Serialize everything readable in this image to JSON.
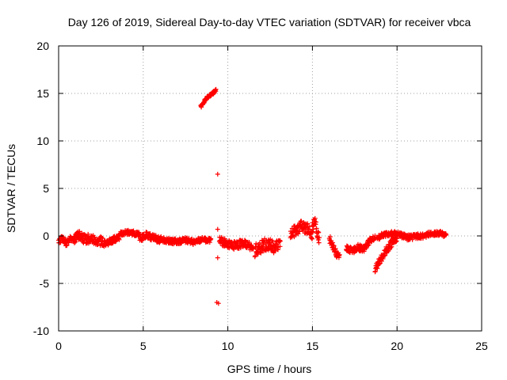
{
  "chart_data": {
    "type": "scatter",
    "title": "Day 126 of 2019, Sidereal Day-to-day VTEC variation (SDTVAR) for receiver vbca",
    "xlabel": "GPS time / hours",
    "ylabel": "SDTVAR / TECUs",
    "xlim": [
      0,
      25
    ],
    "ylim": [
      -10,
      20
    ],
    "xticks": [
      "0",
      "5",
      "10",
      "15",
      "20",
      "25"
    ],
    "yticks": [
      "-10",
      "-5",
      "0",
      "5",
      "10",
      "15",
      "20"
    ],
    "grid": true,
    "marker": "+",
    "series": [
      {
        "name": "SDTVAR",
        "color": "#ff0000",
        "segments": [
          {
            "x0": 0.0,
            "x1": 0.9,
            "y": [
              -0.6,
              -0.2,
              -0.8,
              -0.3,
              -0.5
            ],
            "spread": 0.6
          },
          {
            "x0": 0.9,
            "x1": 2.6,
            "y": [
              -0.3,
              0.1,
              -0.4,
              -0.2,
              -0.6,
              -0.5
            ],
            "spread": 1.0
          },
          {
            "x0": 2.6,
            "x1": 3.6,
            "y": [
              -0.9,
              -0.7,
              -0.4,
              -0.1
            ],
            "spread": 0.7
          },
          {
            "x0": 3.6,
            "x1": 4.8,
            "y": [
              0.2,
              0.4,
              0.3,
              0.1
            ],
            "spread": 0.5
          },
          {
            "x0": 4.8,
            "x1": 6.0,
            "y": [
              -0.3,
              0.1,
              -0.2,
              -0.4
            ],
            "spread": 0.7
          },
          {
            "x0": 6.0,
            "x1": 8.0,
            "y": [
              -0.3,
              -0.5,
              -0.6,
              -0.4,
              -0.7
            ],
            "spread": 0.6
          },
          {
            "x0": 8.0,
            "x1": 9.0,
            "y": [
              -0.6,
              -0.4,
              -0.5
            ],
            "spread": 0.5
          },
          {
            "x0": 8.4,
            "x1": 9.3,
            "y": [
              13.6,
              14.2,
              14.7,
              15.0,
              15.3
            ],
            "spread": 0.3
          },
          {
            "x0": 9.5,
            "x1": 11.5,
            "y": [
              -0.5,
              -0.7,
              -1.0,
              -0.9,
              -0.8,
              -1.2
            ],
            "spread": 0.9
          },
          {
            "x0": 11.6,
            "x1": 13.1,
            "y": [
              -1.5,
              -1.2,
              -0.8,
              -1.3,
              -0.9
            ],
            "spread": 1.4
          },
          {
            "x0": 13.7,
            "x1": 15.0,
            "y": [
              0.3,
              0.6,
              1.0,
              0.8,
              0.2
            ],
            "spread": 1.2
          },
          {
            "x0": 15.0,
            "x1": 15.4,
            "y": [
              0.9,
              1.5,
              0.4,
              -0.3
            ],
            "spread": 1.3
          },
          {
            "x0": 16.0,
            "x1": 16.6,
            "y": [
              -0.3,
              -1.0,
              -1.8,
              -2.0
            ],
            "spread": 0.8
          },
          {
            "x0": 17.0,
            "x1": 18.1,
            "y": [
              -1.3,
              -1.6,
              -1.2,
              -1.5
            ],
            "spread": 0.7
          },
          {
            "x0": 18.1,
            "x1": 18.7,
            "y": [
              -1.2,
              -0.5,
              -0.2
            ],
            "spread": 0.6
          },
          {
            "x0": 18.7,
            "x1": 20.0,
            "y": [
              -3.4,
              -2.5,
              -1.5,
              -0.8,
              -0.2
            ],
            "spread": 0.8
          },
          {
            "x0": 18.8,
            "x1": 20.2,
            "y": [
              -0.3,
              0.1,
              0.2,
              0.3,
              0.1
            ],
            "spread": 0.5
          },
          {
            "x0": 20.2,
            "x1": 21.4,
            "y": [
              0.1,
              -0.2,
              -0.1,
              0.0
            ],
            "spread": 0.6
          },
          {
            "x0": 21.4,
            "x1": 22.9,
            "y": [
              -0.1,
              0.2,
              0.3,
              0.1
            ],
            "spread": 0.5
          }
        ],
        "outliers": [
          {
            "x": 9.4,
            "y": 6.5
          },
          {
            "x": 9.4,
            "y": 0.7
          },
          {
            "x": 9.4,
            "y": -2.3
          },
          {
            "x": 9.35,
            "y": -7.0
          },
          {
            "x": 9.45,
            "y": -7.1
          }
        ]
      }
    ]
  }
}
